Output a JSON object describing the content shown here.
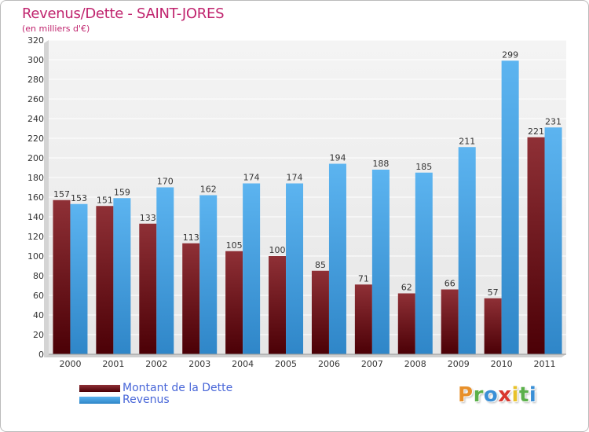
{
  "chart_data": {
    "type": "bar",
    "title": "Revenus/Dette - SAINT-JORES",
    "subtitle": "(en milliers d'€)",
    "categories": [
      "2000",
      "2001",
      "2002",
      "2003",
      "2004",
      "2005",
      "2006",
      "2007",
      "2008",
      "2009",
      "2010",
      "2011"
    ],
    "series": [
      {
        "name": "Montant de la Dette",
        "color": "#6e0f17",
        "values": [
          157,
          151,
          133,
          113,
          105,
          100,
          85,
          71,
          62,
          66,
          57,
          221
        ]
      },
      {
        "name": "Revenus",
        "color": "#3d9fe4",
        "values": [
          153,
          159,
          170,
          162,
          174,
          174,
          194,
          188,
          185,
          211,
          299,
          231
        ]
      }
    ],
    "ylim": [
      0,
      320
    ],
    "yticks": [
      0,
      20,
      40,
      60,
      80,
      100,
      120,
      140,
      160,
      180,
      200,
      220,
      240,
      260,
      280,
      300,
      320
    ],
    "grid": true,
    "legend_position": "bottom-left"
  },
  "logo": {
    "letters": [
      "P",
      "r",
      "o",
      "x",
      "i",
      "t",
      "i"
    ],
    "colors": [
      "#e8902a",
      "#5bb04a",
      "#3a8fd6",
      "#d9372f",
      "#e8c22a",
      "#5bb04a",
      "#3a8fd6"
    ]
  }
}
